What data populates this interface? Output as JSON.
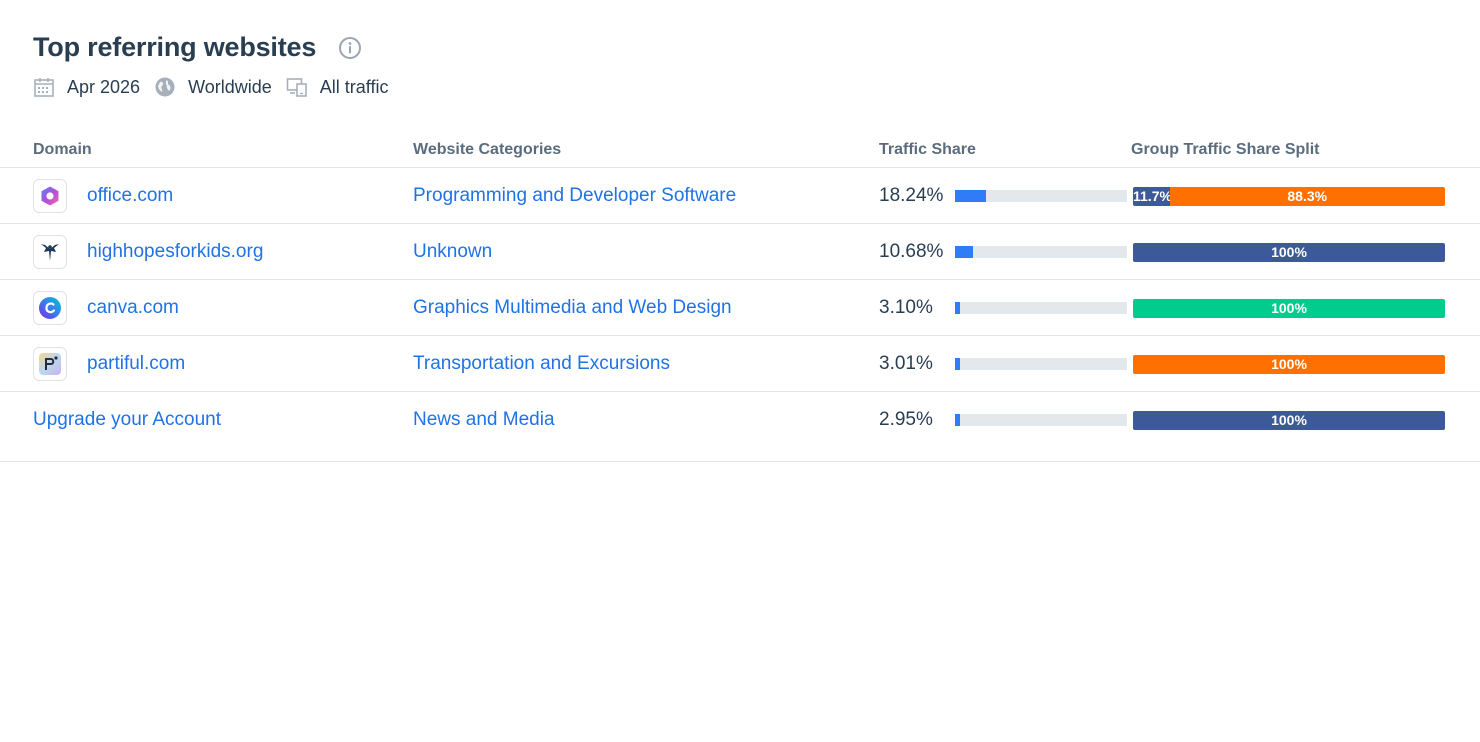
{
  "header": {
    "title": "Top referring websites",
    "info_icon": "info-icon",
    "meta": [
      {
        "icon": "calendar-icon",
        "label": "Apr 2026"
      },
      {
        "icon": "globe-icon",
        "label": "Worldwide"
      },
      {
        "icon": "devices-icon",
        "label": "All traffic"
      }
    ]
  },
  "table": {
    "columns": [
      "Domain",
      "Website Categories",
      "Traffic Share",
      "Group Traffic Share Split"
    ],
    "rows": [
      {
        "domain": "office.com",
        "category": "Programming and Developer Software",
        "share": "18.24%",
        "share_fraction": 0.1824,
        "split": [
          {
            "label": "11.7%",
            "percent": 11.7,
            "color": "#3c5a99"
          },
          {
            "label": "88.3%",
            "percent": 88.3,
            "color": "#ff7000"
          }
        ]
      },
      {
        "domain": "highhopesforkids.org",
        "category": "Unknown",
        "share": "10.68%",
        "share_fraction": 0.1068,
        "split": [
          {
            "label": "100%",
            "percent": 100,
            "color": "#3c5a99"
          }
        ]
      },
      {
        "domain": "canva.com",
        "category": "Graphics Multimedia and Web Design",
        "share": "3.10%",
        "share_fraction": 0.031,
        "split": [
          {
            "label": "100%",
            "percent": 100,
            "color": "#00cc8e"
          }
        ]
      },
      {
        "domain": "partiful.com",
        "category": "Transportation and Excursions",
        "share": "3.01%",
        "share_fraction": 0.0301,
        "split": [
          {
            "label": "100%",
            "percent": 100,
            "color": "#ff7000"
          }
        ]
      },
      {
        "domain": "Upgrade your Account",
        "category": "News and Media",
        "share": "2.95%",
        "share_fraction": 0.0295,
        "split": [
          {
            "label": "100%",
            "percent": 100,
            "color": "#3c5a99"
          }
        ]
      }
    ]
  }
}
